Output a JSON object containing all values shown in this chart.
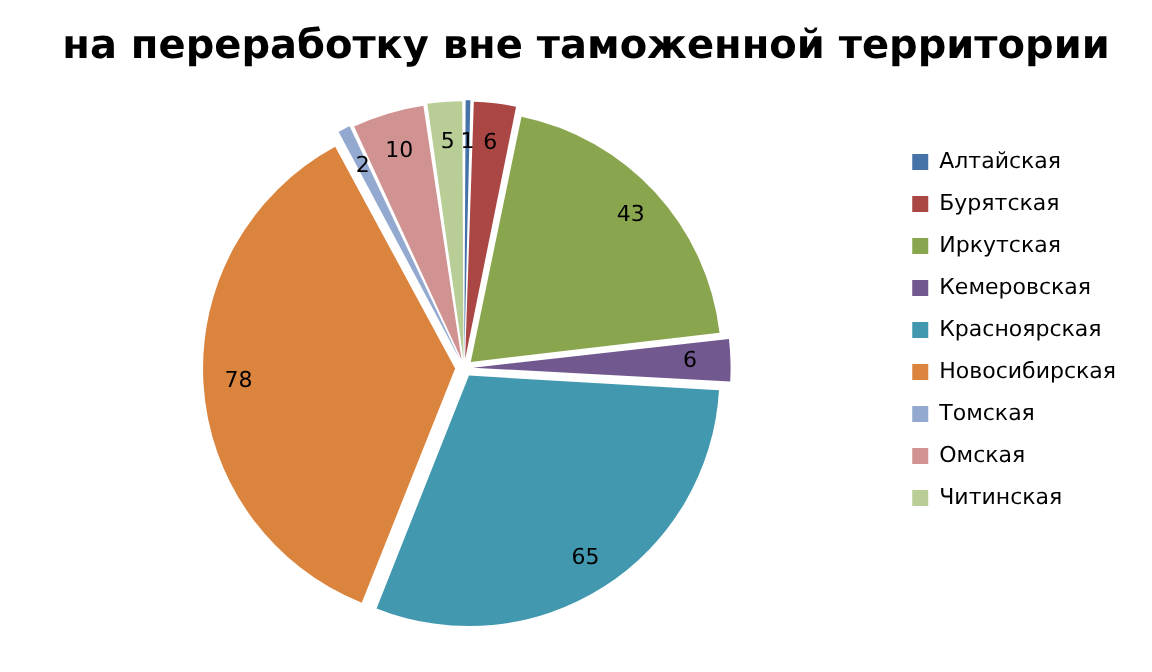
{
  "chart_data": {
    "type": "pie",
    "title": "на переработку вне таможенной территории",
    "categories": [
      "Алтайская",
      "Бурятская",
      "Иркутская",
      "Кемеровская",
      "Красноярская",
      "Новосибирская",
      "Томская",
      "Омская",
      "Читинская"
    ],
    "values": [
      1,
      6,
      43,
      6,
      65,
      78,
      2,
      10,
      5
    ],
    "colors": [
      "#4572a7",
      "#aa4643",
      "#89a54e",
      "#71588f",
      "#4198af",
      "#db843d",
      "#93a9cf",
      "#d19392",
      "#b9cd96"
    ],
    "legend": "right",
    "data_labels": true
  }
}
